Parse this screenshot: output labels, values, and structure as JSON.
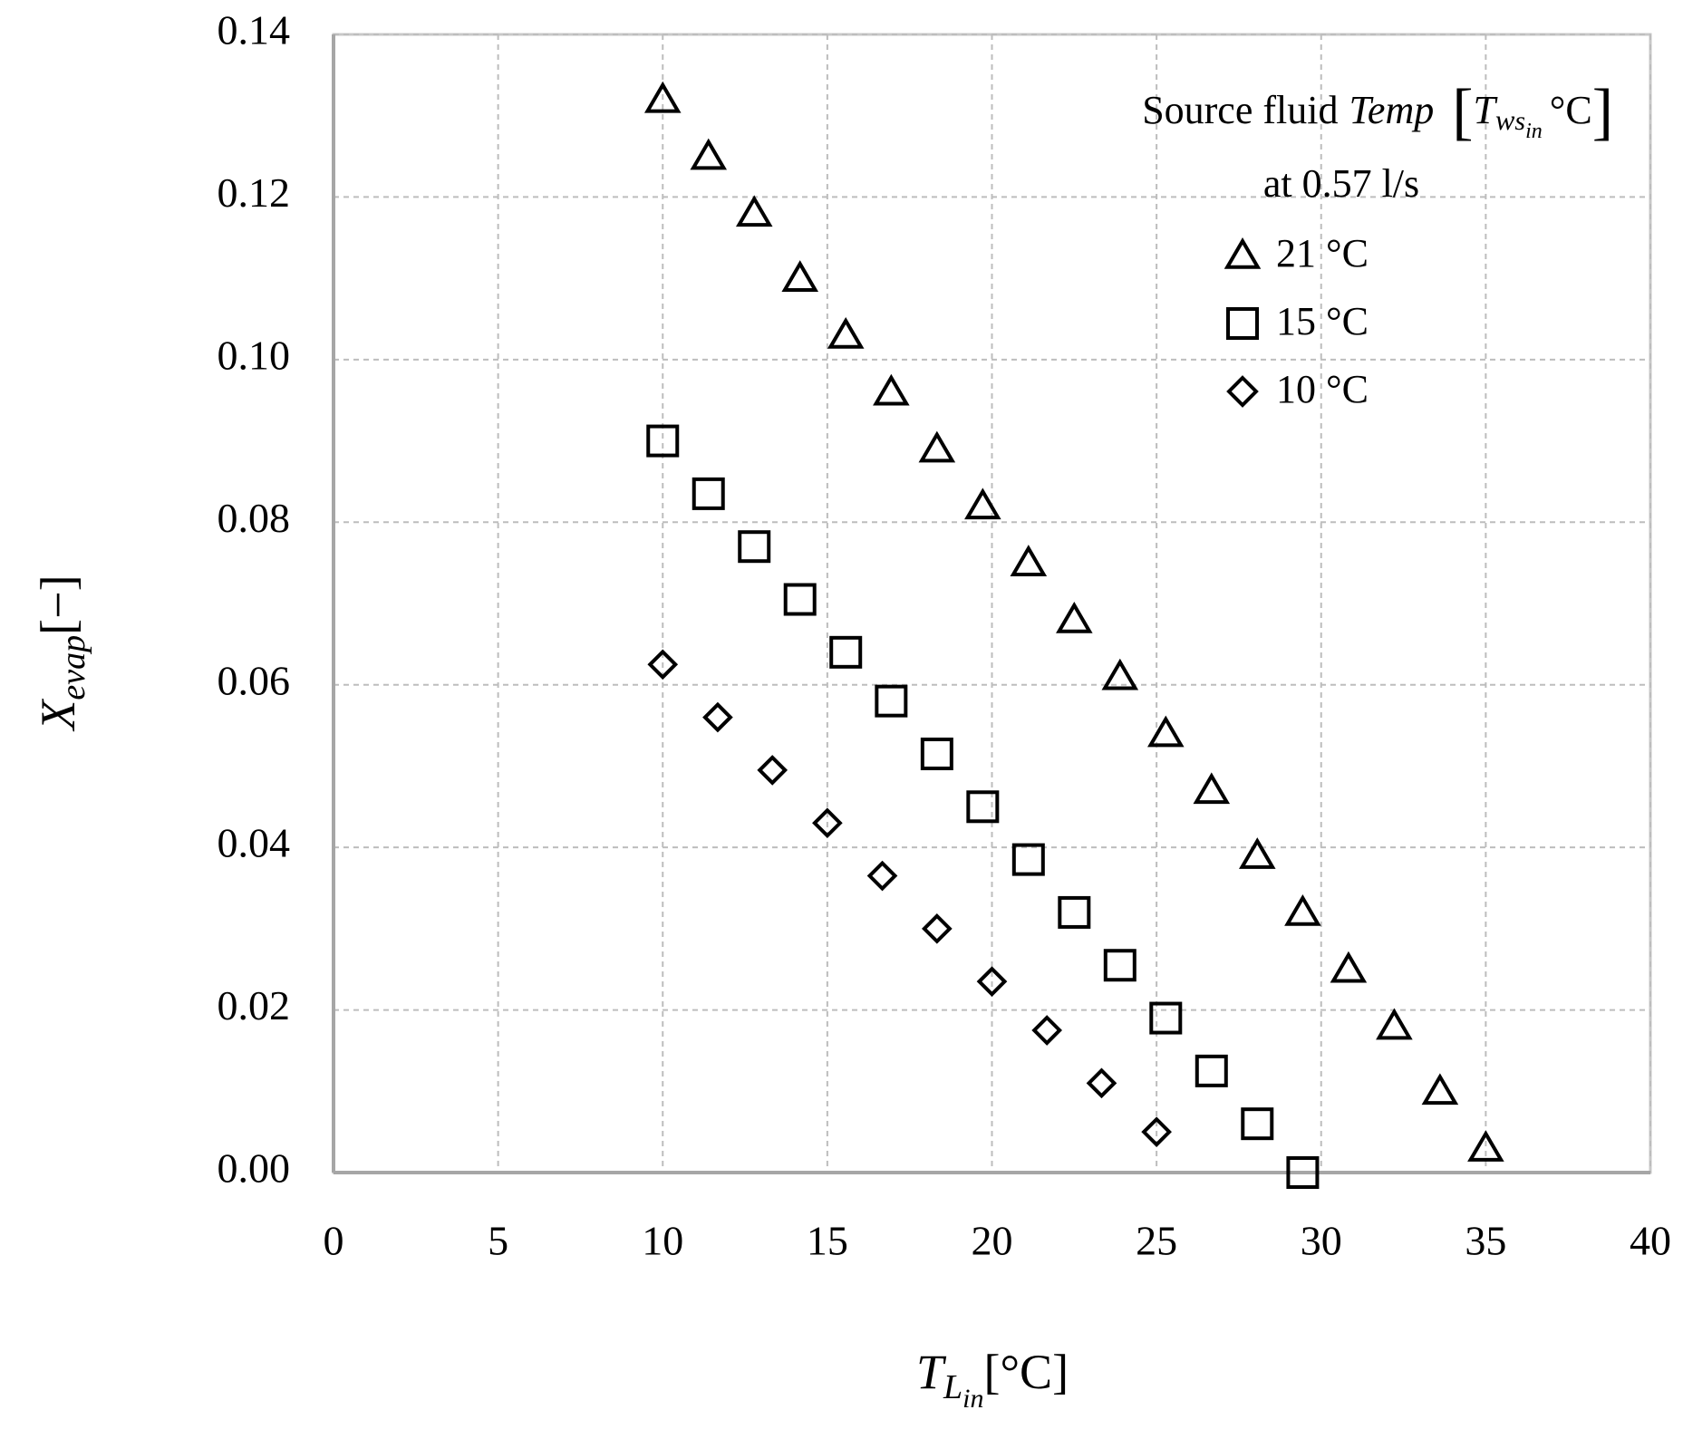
{
  "chart_data": {
    "type": "scatter",
    "x_label": {
      "main": "T",
      "sub": "L",
      "subsub": "in",
      "unit": "[°C]"
    },
    "y_label": {
      "main": "X",
      "sub": "evap",
      "unit": "[−]"
    },
    "legend_title": {
      "text": "Source fluid",
      "italic": "Temp",
      "symbol": "T",
      "sub": "w",
      "subsub": "s",
      "subsubsub": "in",
      "unit": "°C",
      "flow": "at 0.57 l/s"
    },
    "legend_position": "upper right",
    "grid": true,
    "xlim": [
      0,
      40
    ],
    "xticks": [
      0,
      5,
      10,
      15,
      20,
      25,
      30,
      35,
      40
    ],
    "ylim": [
      0,
      0.14
    ],
    "yticks": [
      {
        "value": 0,
        "label": "0.00"
      },
      {
        "value": 0.02,
        "label": "0.02"
      },
      {
        "value": 0.04,
        "label": "0.04"
      },
      {
        "value": 0.06,
        "label": "0.06"
      },
      {
        "value": 0.08,
        "label": "0.08"
      },
      {
        "value": 0.1,
        "label": "0.10"
      },
      {
        "value": 0.12,
        "label": "0.12"
      },
      {
        "value": 0.14,
        "label": "0.14"
      }
    ],
    "series": [
      {
        "name": "21 °C",
        "marker": "triangle",
        "color": "#000000",
        "x": [
          10,
          11.39,
          12.78,
          14.17,
          15.56,
          16.94,
          18.33,
          19.72,
          21.11,
          22.5,
          23.89,
          25.28,
          26.67,
          28.06,
          29.44,
          30.83,
          32.22,
          33.61,
          35
        ],
        "values": [
          0.132,
          0.125,
          0.118,
          0.11,
          0.103,
          0.096,
          0.089,
          0.082,
          0.075,
          0.068,
          0.061,
          0.054,
          0.047,
          0.039,
          0.032,
          0.025,
          0.018,
          0.01,
          0.003
        ]
      },
      {
        "name": "15 °C",
        "marker": "square",
        "color": "#000000",
        "x": [
          10,
          11.39,
          12.78,
          14.17,
          15.56,
          16.94,
          18.33,
          19.72,
          21.11,
          22.5,
          23.89,
          25.28,
          26.67,
          28.06,
          29.44
        ],
        "values": [
          0.09,
          0.0835,
          0.077,
          0.0705,
          0.064,
          0.058,
          0.0515,
          0.045,
          0.0385,
          0.032,
          0.0255,
          0.019,
          0.0125,
          0.006,
          0
        ]
      },
      {
        "name": "10 °C",
        "marker": "diamond",
        "color": "#000000",
        "x": [
          10,
          11.67,
          13.33,
          15,
          16.67,
          18.33,
          20,
          21.67,
          23.33,
          25
        ],
        "values": [
          0.0625,
          0.056,
          0.0495,
          0.043,
          0.0365,
          0.03,
          0.0235,
          0.0175,
          0.011,
          0.005
        ]
      }
    ]
  }
}
